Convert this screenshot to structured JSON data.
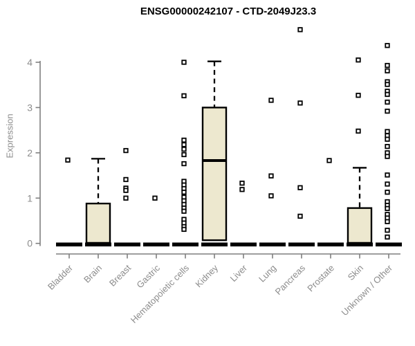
{
  "chart_data": {
    "type": "boxplot",
    "title": "ENSG00000242107 - CTD-2049J23.3",
    "ylabel": "Expression",
    "xlabel": "",
    "ylim": [
      0,
      4.8
    ],
    "yticks": [
      0,
      1,
      2,
      3,
      4
    ],
    "grid": false,
    "legend": "none",
    "categories": [
      "Bladder",
      "Brain",
      "Breast",
      "Gastric",
      "Hematopoietic cells",
      "Kidney",
      "Liver",
      "Lung",
      "Pancreas",
      "Prostate",
      "Skin",
      "Unknown / Other"
    ],
    "series": [
      {
        "category": "Bladder",
        "q1": 0,
        "median": 0,
        "q3": 0,
        "whisker_high": 0,
        "outliers": [
          1.84
        ]
      },
      {
        "category": "Brain",
        "q1": 0,
        "median": 0,
        "q3": 0.88,
        "whisker_high": 1.87,
        "outliers": []
      },
      {
        "category": "Breast",
        "q1": 0,
        "median": 0,
        "q3": 0,
        "whisker_high": 0,
        "outliers": [
          2.05,
          1.41,
          1.22,
          1.17,
          1.0
        ]
      },
      {
        "category": "Gastric",
        "q1": 0,
        "median": 0,
        "q3": 0,
        "whisker_high": 0,
        "outliers": [
          1.0
        ]
      },
      {
        "category": "Hematopoietic cells",
        "q1": 0,
        "median": 0,
        "q3": 0,
        "whisker_high": 0,
        "outliers": [
          4.0,
          3.26,
          2.28,
          2.18,
          2.08,
          1.96,
          1.76,
          1.37,
          1.29,
          1.21,
          1.13,
          1.02,
          0.94,
          0.86,
          0.78,
          0.71,
          0.53,
          0.45,
          0.37,
          0.31
        ]
      },
      {
        "category": "Kidney",
        "q1": 0.07,
        "median": 1.83,
        "q3": 3.0,
        "whisker_high": 4.02,
        "outliers": []
      },
      {
        "category": "Liver",
        "q1": 0,
        "median": 0,
        "q3": 0,
        "whisker_high": 0,
        "outliers": [
          1.33,
          1.19
        ]
      },
      {
        "category": "Lung",
        "q1": 0,
        "median": 0,
        "q3": 0,
        "whisker_high": 0,
        "outliers": [
          3.16,
          1.49,
          1.05
        ]
      },
      {
        "category": "Pancreas",
        "q1": 0,
        "median": 0,
        "q3": 0,
        "whisker_high": 0,
        "outliers": [
          4.72,
          3.1,
          1.23,
          0.6
        ]
      },
      {
        "category": "Prostate",
        "q1": 0,
        "median": 0,
        "q3": 0,
        "whisker_high": 0,
        "outliers": [
          1.83
        ]
      },
      {
        "category": "Skin",
        "q1": 0,
        "median": 0,
        "q3": 0.78,
        "whisker_high": 1.67,
        "outliers": [
          4.05,
          3.27,
          2.48
        ]
      },
      {
        "category": "Unknown / Other",
        "q1": 0,
        "median": 0,
        "q3": 0,
        "whisker_high": 0,
        "outliers": [
          4.37,
          3.93,
          3.81,
          3.57,
          3.51,
          3.36,
          3.29,
          3.12,
          2.92,
          2.47,
          2.38,
          2.3,
          2.14,
          2.0,
          1.92,
          1.51,
          1.31,
          1.13,
          0.92,
          0.84,
          0.77,
          0.64,
          0.56,
          0.48,
          0.29,
          0.14
        ]
      }
    ],
    "colors": {
      "box_fill": "#EDE8CF",
      "box_stroke": "#000000",
      "axis": "#7F7F7F",
      "tick_label": "#8C8C8C",
      "title": "#000000",
      "background": "#FFFFFF"
    }
  }
}
